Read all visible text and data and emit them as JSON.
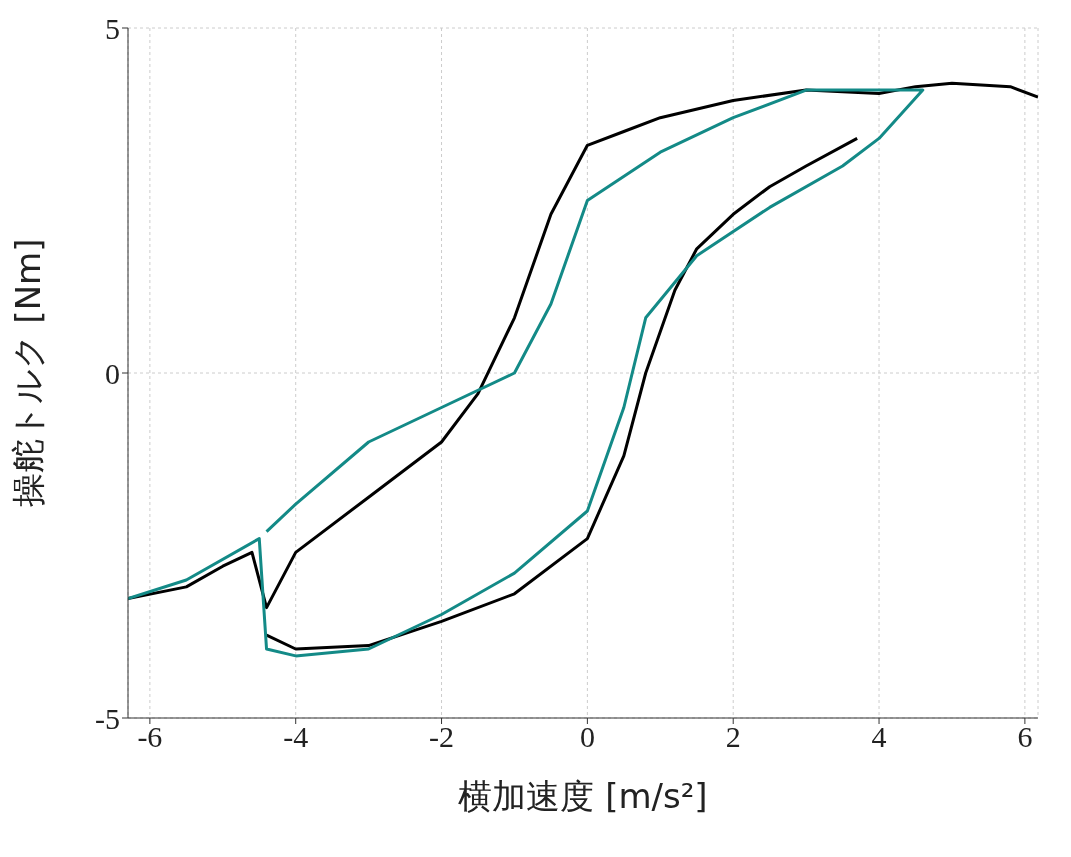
{
  "chart_data": {
    "type": "line",
    "xlabel": "横加速度 [m/s²]",
    "ylabel": "操舵トルク [Nm]",
    "xlim": [
      -6.3,
      6.18
    ],
    "xticks": [
      -6,
      -4,
      -2,
      0,
      2,
      4,
      6
    ],
    "ylim": [
      -5,
      5
    ],
    "yticks": [
      -5,
      0,
      5
    ],
    "grid": true,
    "marker": "none",
    "line_style": "solid",
    "series": [
      {
        "color": "#000000",
        "x": [
          -6.3,
          -5.5,
          -5,
          -4.6,
          -4.4,
          -4,
          -3,
          -2,
          -1.5,
          -1,
          -0.5,
          0,
          0.5,
          1,
          2,
          3,
          4,
          4.5,
          5,
          5.8,
          6.18
        ],
        "values": [
          -3.27,
          -3.1,
          -2.8,
          -2.6,
          -3.4,
          -2.6,
          -1.8,
          -1.0,
          -0.3,
          0.8,
          2.3,
          3.3,
          3.5,
          3.7,
          3.95,
          4.1,
          4.05,
          4.15,
          4.2,
          4.15,
          4.0
        ]
      },
      {
        "color": "#000000",
        "x": [
          -4.4,
          -4,
          -3,
          -2,
          -1,
          0,
          0.5,
          0.8,
          1.2,
          1.5,
          2,
          2.5,
          3,
          3.7
        ],
        "values": [
          -3.8,
          -4.0,
          -3.95,
          -3.6,
          -3.2,
          -2.4,
          -1.2,
          0,
          1.2,
          1.8,
          2.3,
          2.7,
          3.0,
          3.4
        ]
      },
      {
        "color": "#138a87",
        "x": [
          -6.3,
          -5.5,
          -4.5,
          -4.4,
          -4,
          -3,
          -2,
          -1,
          0,
          0.5,
          0.8,
          1.5,
          2.5,
          3.5,
          4,
          4.6,
          4.2,
          3,
          2,
          1,
          0,
          -0.5,
          -1,
          -2,
          -3,
          -4,
          -4.4
        ],
        "values": [
          -3.27,
          -3.0,
          -2.4,
          -4.0,
          -4.1,
          -4.0,
          -3.5,
          -2.9,
          -2.0,
          -0.5,
          0.8,
          1.7,
          2.4,
          3.0,
          3.4,
          4.1,
          4.1,
          4.1,
          3.7,
          3.2,
          2.5,
          1.0,
          0,
          -0.5,
          -1.0,
          -1.9,
          -2.3
        ]
      }
    ]
  }
}
